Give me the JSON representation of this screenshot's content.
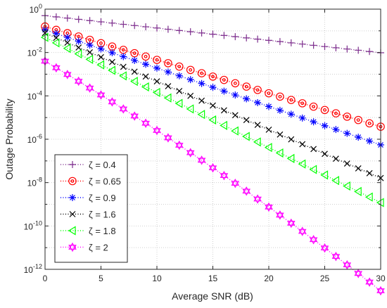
{
  "chart_data": {
    "type": "line",
    "xlabel": "Average SNR (dB)",
    "ylabel": "Outage Probability",
    "xlim": [
      0,
      30
    ],
    "ylim_log10": [
      -12,
      0
    ],
    "yscale": "log",
    "grid": true,
    "legend_position": "bottom-left",
    "x": [
      0,
      1,
      2,
      3,
      4,
      5,
      6,
      7,
      8,
      9,
      10,
      11,
      12,
      13,
      14,
      15,
      16,
      17,
      18,
      19,
      20,
      21,
      22,
      23,
      24,
      25,
      26,
      27,
      28,
      29,
      30
    ],
    "xticks": [
      {
        "value": 0,
        "label": "0"
      },
      {
        "value": 5,
        "label": "5"
      },
      {
        "value": 10,
        "label": "10"
      },
      {
        "value": 15,
        "label": "15"
      },
      {
        "value": 20,
        "label": "20"
      },
      {
        "value": 25,
        "label": "25"
      },
      {
        "value": 30,
        "label": "30"
      }
    ],
    "yticks": [
      {
        "exp": 0,
        "base": "10",
        "sup": "0"
      },
      {
        "exp": -2,
        "base": "10",
        "sup": "-2"
      },
      {
        "exp": -4,
        "base": "10",
        "sup": "-4"
      },
      {
        "exp": -6,
        "base": "10",
        "sup": "-6"
      },
      {
        "exp": -8,
        "base": "10",
        "sup": "-8"
      },
      {
        "exp": -10,
        "base": "10",
        "sup": "-10"
      },
      {
        "exp": -12,
        "base": "10",
        "sup": "-12"
      }
    ],
    "series": [
      {
        "name": "ζ = 0.4",
        "color": "#7e2f8e",
        "marker": "plus",
        "log10_y": {
          "start": -0.3,
          "slope": -0.057,
          "curve": 0
        }
      },
      {
        "name": "ζ = 0.65",
        "color": "#ff0000",
        "marker": "circle",
        "log10_y": {
          "start": -0.8,
          "slope": -0.154,
          "curve": 0
        }
      },
      {
        "name": "ζ = 0.9",
        "color": "#0000ff",
        "marker": "asterisk",
        "log10_y": {
          "start": -0.95,
          "slope": -0.177,
          "curve": 0
        }
      },
      {
        "name": "ζ = 1.6",
        "color": "#000000",
        "marker": "x",
        "log10_y": {
          "start": -1.1,
          "slope": -0.223,
          "curve": 0
        }
      },
      {
        "name": "ζ = 1.8",
        "color": "#00ff00",
        "marker": "triangle-left",
        "log10_y": {
          "start": -1.3,
          "slope": -0.254,
          "curve": 0
        }
      },
      {
        "name": "ζ = 2",
        "color": "#ff00ff",
        "marker": "hexagram",
        "log10_y": {
          "start": -2.4,
          "slope": -0.303,
          "curve": -0.05
        }
      }
    ]
  }
}
